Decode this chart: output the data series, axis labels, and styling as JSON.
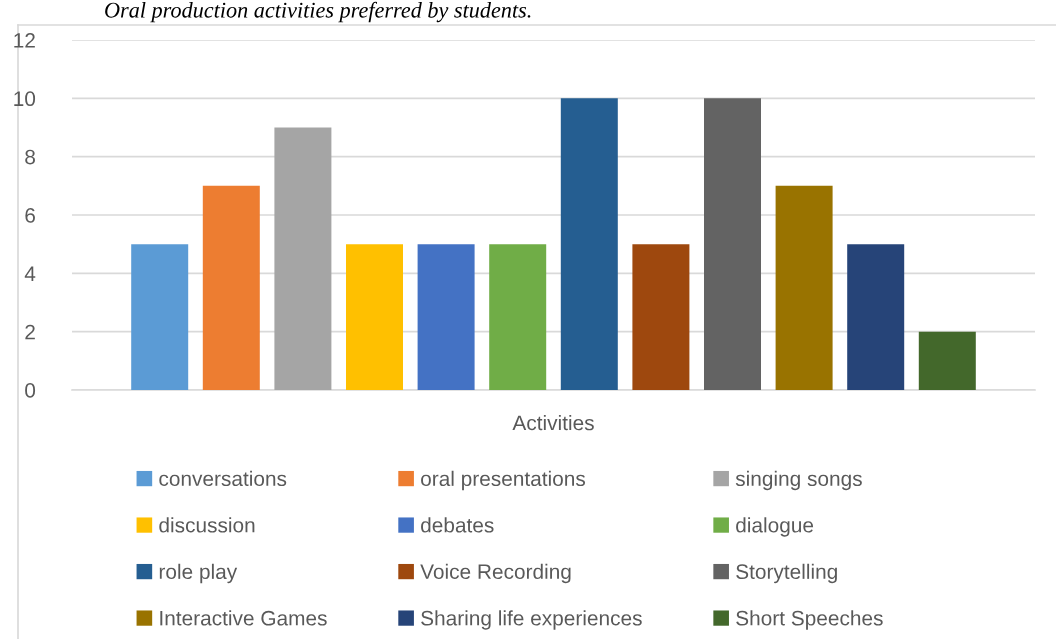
{
  "chart_data": {
    "type": "bar",
    "title": "Oral production activities preferred by students.",
    "categories": [
      "Activities"
    ],
    "series": [
      {
        "name": "conversations",
        "color": "#5b9bd5",
        "values": [
          5
        ]
      },
      {
        "name": "oral presentations",
        "color": "#ed7d31",
        "values": [
          7
        ]
      },
      {
        "name": "singing songs",
        "color": "#a5a5a5",
        "values": [
          9
        ]
      },
      {
        "name": "discussion",
        "color": "#ffc000",
        "values": [
          5
        ]
      },
      {
        "name": "debates",
        "color": "#4472c4",
        "values": [
          5
        ]
      },
      {
        "name": "dialogue",
        "color": "#70ad47",
        "values": [
          5
        ]
      },
      {
        "name": "role play",
        "color": "#255e91",
        "values": [
          10
        ]
      },
      {
        "name": "Voice Recording",
        "color": "#9e480e",
        "values": [
          5
        ]
      },
      {
        "name": "Storytelling",
        "color": "#636363",
        "values": [
          10
        ]
      },
      {
        "name": "Interactive Games",
        "color": "#997300",
        "values": [
          7
        ]
      },
      {
        "name": "Sharing life experiences",
        "color": "#264478",
        "values": [
          5
        ]
      },
      {
        "name": "Short Speeches",
        "color": "#43682b",
        "values": [
          2
        ]
      }
    ],
    "ylim": [
      0,
      12
    ],
    "yticks": [
      0,
      2,
      4,
      6,
      8,
      10,
      12
    ],
    "grid": "y",
    "legend": "bottom"
  }
}
